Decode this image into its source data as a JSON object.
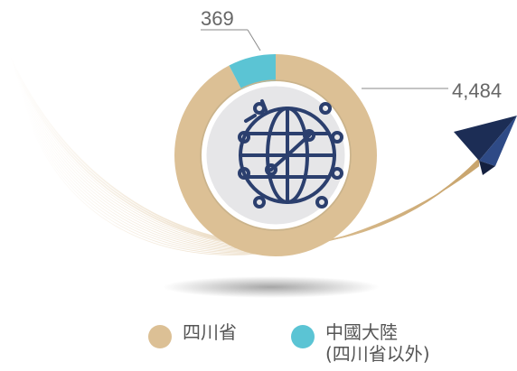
{
  "chart_data": {
    "type": "pie",
    "style": "donut",
    "slices": [
      {
        "label": "四川省",
        "value": 4484,
        "value_label": "4,484",
        "color": "#dcc095"
      },
      {
        "label": "中國大陸",
        "sublabel": "(四川省以外)",
        "value": 369,
        "value_label": "369",
        "color": "#5bc4d4"
      }
    ],
    "center_icon": "globe-network-icon",
    "decorations": [
      "paper-plane-icon",
      "swoosh-lines"
    ]
  },
  "colors": {
    "ring_inner": "#e6e6e8",
    "icon_stroke": "#2b3f6e",
    "plane_dark": "#1c2d55",
    "label_text": "#666666",
    "leader_line": "#8a8a8a"
  }
}
